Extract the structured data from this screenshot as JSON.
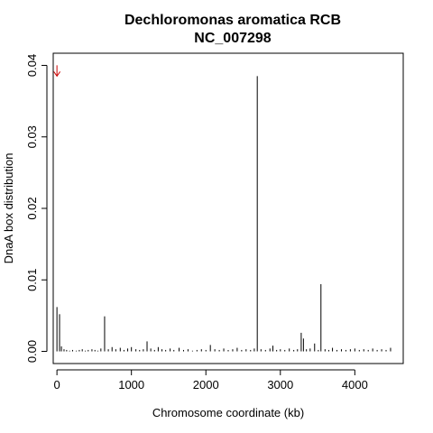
{
  "chart_data": {
    "type": "bar",
    "title": "Dechloromonas aromatica RCB",
    "subtitle": "NC_007298",
    "xlabel": "Chromosome coordinate (kb)",
    "ylabel": "DnaA box distribution",
    "xlim": [
      -50,
      4650
    ],
    "ylim": [
      -0.0017,
      0.0417
    ],
    "xticks": [
      0,
      1000,
      2000,
      3000,
      4000
    ],
    "xtick_labels": [
      "0",
      "1000",
      "2000",
      "3000",
      "4000"
    ],
    "yticks": [
      0,
      0.01,
      0.02,
      0.03,
      0.04
    ],
    "ytick_labels": [
      "0.00",
      "0.01",
      "0.02",
      "0.03",
      "0.04"
    ],
    "grid": false,
    "origin_marker": {
      "x": 0,
      "y": 0.0385,
      "color": "#cc0000"
    },
    "bar_color": "#000000",
    "bars": [
      {
        "x": 0,
        "y": 0.0062
      },
      {
        "x": 35,
        "y": 0.0052
      },
      {
        "x": 60,
        "y": 0.0007
      },
      {
        "x": 95,
        "y": 0.0003
      },
      {
        "x": 130,
        "y": 0.0002
      },
      {
        "x": 170,
        "y": 0.0001
      },
      {
        "x": 210,
        "y": 0.0002
      },
      {
        "x": 260,
        "y": 0.0001
      },
      {
        "x": 300,
        "y": 0.0002
      },
      {
        "x": 340,
        "y": 0.0003
      },
      {
        "x": 380,
        "y": 0.0001
      },
      {
        "x": 420,
        "y": 0.0002
      },
      {
        "x": 470,
        "y": 0.0003
      },
      {
        "x": 510,
        "y": 0.0002
      },
      {
        "x": 550,
        "y": 0.0001
      },
      {
        "x": 590,
        "y": 0.0004
      },
      {
        "x": 640,
        "y": 0.0049
      },
      {
        "x": 690,
        "y": 0.0003
      },
      {
        "x": 740,
        "y": 0.0006
      },
      {
        "x": 790,
        "y": 0.0003
      },
      {
        "x": 850,
        "y": 0.0005
      },
      {
        "x": 900,
        "y": 0.0002
      },
      {
        "x": 950,
        "y": 0.0004
      },
      {
        "x": 1000,
        "y": 0.0006
      },
      {
        "x": 1060,
        "y": 0.0003
      },
      {
        "x": 1110,
        "y": 0.0002
      },
      {
        "x": 1160,
        "y": 0.0003
      },
      {
        "x": 1210,
        "y": 0.0014
      },
      {
        "x": 1260,
        "y": 0.0004
      },
      {
        "x": 1310,
        "y": 0.0002
      },
      {
        "x": 1360,
        "y": 0.0006
      },
      {
        "x": 1410,
        "y": 0.0003
      },
      {
        "x": 1460,
        "y": 0.0002
      },
      {
        "x": 1520,
        "y": 0.0004
      },
      {
        "x": 1570,
        "y": 0.0002
      },
      {
        "x": 1640,
        "y": 0.0005
      },
      {
        "x": 1700,
        "y": 0.0002
      },
      {
        "x": 1760,
        "y": 0.0003
      },
      {
        "x": 1820,
        "y": 0.0001
      },
      {
        "x": 1880,
        "y": 0.0002
      },
      {
        "x": 1940,
        "y": 0.0003
      },
      {
        "x": 2000,
        "y": 0.0002
      },
      {
        "x": 2060,
        "y": 0.0009
      },
      {
        "x": 2120,
        "y": 0.0003
      },
      {
        "x": 2180,
        "y": 0.0002
      },
      {
        "x": 2240,
        "y": 0.0004
      },
      {
        "x": 2300,
        "y": 0.0002
      },
      {
        "x": 2360,
        "y": 0.0003
      },
      {
        "x": 2420,
        "y": 0.0005
      },
      {
        "x": 2480,
        "y": 0.0002
      },
      {
        "x": 2540,
        "y": 0.0003
      },
      {
        "x": 2600,
        "y": 0.0002
      },
      {
        "x": 2650,
        "y": 0.0004
      },
      {
        "x": 2690,
        "y": 0.0385
      },
      {
        "x": 2740,
        "y": 0.0003
      },
      {
        "x": 2800,
        "y": 0.0002
      },
      {
        "x": 2860,
        "y": 0.0004
      },
      {
        "x": 2900,
        "y": 0.0008
      },
      {
        "x": 2950,
        "y": 0.0002
      },
      {
        "x": 3000,
        "y": 0.0003
      },
      {
        "x": 3060,
        "y": 0.0002
      },
      {
        "x": 3120,
        "y": 0.0004
      },
      {
        "x": 3180,
        "y": 0.0002
      },
      {
        "x": 3230,
        "y": 0.0003
      },
      {
        "x": 3280,
        "y": 0.0026
      },
      {
        "x": 3310,
        "y": 0.0018
      },
      {
        "x": 3350,
        "y": 0.0003
      },
      {
        "x": 3400,
        "y": 0.0004
      },
      {
        "x": 3460,
        "y": 0.0011
      },
      {
        "x": 3510,
        "y": 0.0002
      },
      {
        "x": 3545,
        "y": 0.0094
      },
      {
        "x": 3600,
        "y": 0.0003
      },
      {
        "x": 3650,
        "y": 0.0002
      },
      {
        "x": 3700,
        "y": 0.0005
      },
      {
        "x": 3760,
        "y": 0.0002
      },
      {
        "x": 3820,
        "y": 0.0003
      },
      {
        "x": 3880,
        "y": 0.0002
      },
      {
        "x": 3940,
        "y": 0.0003
      },
      {
        "x": 4000,
        "y": 0.0004
      },
      {
        "x": 4060,
        "y": 0.0002
      },
      {
        "x": 4120,
        "y": 0.0003
      },
      {
        "x": 4180,
        "y": 0.0002
      },
      {
        "x": 4240,
        "y": 0.0004
      },
      {
        "x": 4300,
        "y": 0.0002
      },
      {
        "x": 4360,
        "y": 0.0003
      },
      {
        "x": 4420,
        "y": 0.0002
      },
      {
        "x": 4480,
        "y": 0.0005
      }
    ]
  }
}
